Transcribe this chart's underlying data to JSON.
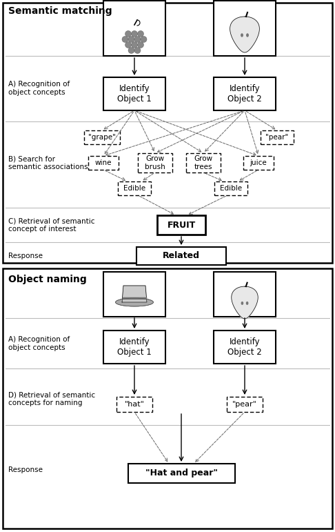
{
  "fig_width": 4.86,
  "fig_height": 7.71,
  "dpi": 100,
  "sem_title": "Semantic matching",
  "obj_title": "Object naming",
  "label_A": "A) Recognition of\nobject concepts",
  "label_B": "B) Search for\nsemantic associations",
  "label_C": "C) Retrieval of semantic\nconcept of interest",
  "label_Resp1": "Response",
  "label_D": "D) Retrieval of semantic\nconcepts for naming",
  "label_Resp2": "Response",
  "box_id1": "Identify\nObject 1",
  "box_id2": "Identify\nObject 2",
  "box_fruit": "FRUIT",
  "box_related": "Related",
  "box_grape": "\"grape\"",
  "box_pear_sem": "\"pear\"",
  "box_wine": "wine",
  "box_grow_brush": "Grow\nbrush",
  "box_grow_trees": "Grow\ntrees",
  "box_juice": "juice",
  "box_edible1": "Edible",
  "box_edible2": "Edible",
  "box_id3": "Identify\nObject 1",
  "box_id4": "Identify\nObject 2",
  "box_hat": "\"hat\"",
  "box_pear_obj": "\"pear\"",
  "box_hat_pear": "\"Hat and pear\""
}
